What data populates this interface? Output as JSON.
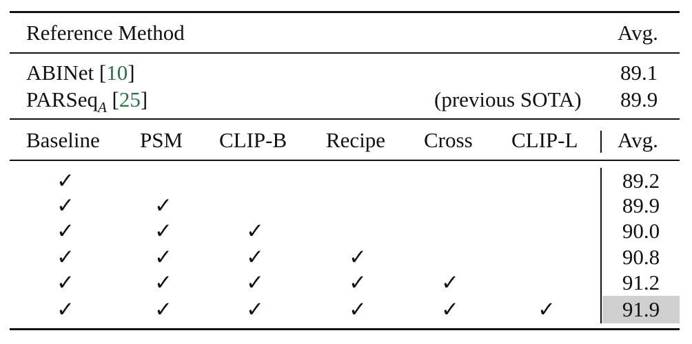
{
  "reference_section": {
    "header": {
      "method": "Reference Method",
      "avg": "Avg."
    },
    "rows": [
      {
        "method": "ABINet",
        "ref": "10",
        "note": "",
        "avg": "89.1"
      },
      {
        "method": "PARSeq",
        "subscript": "A",
        "ref": "25",
        "note": "(previous SOTA)",
        "avg": "89.9"
      }
    ]
  },
  "ablation_section": {
    "columns": [
      "Baseline",
      "PSM",
      "CLIP-B",
      "Recipe",
      "Cross",
      "CLIP-L"
    ],
    "avg_label": "Avg.",
    "check_symbol": "✓",
    "rows": [
      {
        "checks": [
          true,
          false,
          false,
          false,
          false,
          false
        ],
        "avg": "89.2",
        "highlight": false
      },
      {
        "checks": [
          true,
          true,
          false,
          false,
          false,
          false
        ],
        "avg": "89.9",
        "highlight": false
      },
      {
        "checks": [
          true,
          true,
          true,
          false,
          false,
          false
        ],
        "avg": "90.0",
        "highlight": false
      },
      {
        "checks": [
          true,
          true,
          true,
          true,
          false,
          false
        ],
        "avg": "90.8",
        "highlight": false
      },
      {
        "checks": [
          true,
          true,
          true,
          true,
          true,
          false
        ],
        "avg": "91.2",
        "highlight": false
      },
      {
        "checks": [
          true,
          true,
          true,
          true,
          true,
          true
        ],
        "avg": "91.9",
        "highlight": true
      }
    ]
  }
}
